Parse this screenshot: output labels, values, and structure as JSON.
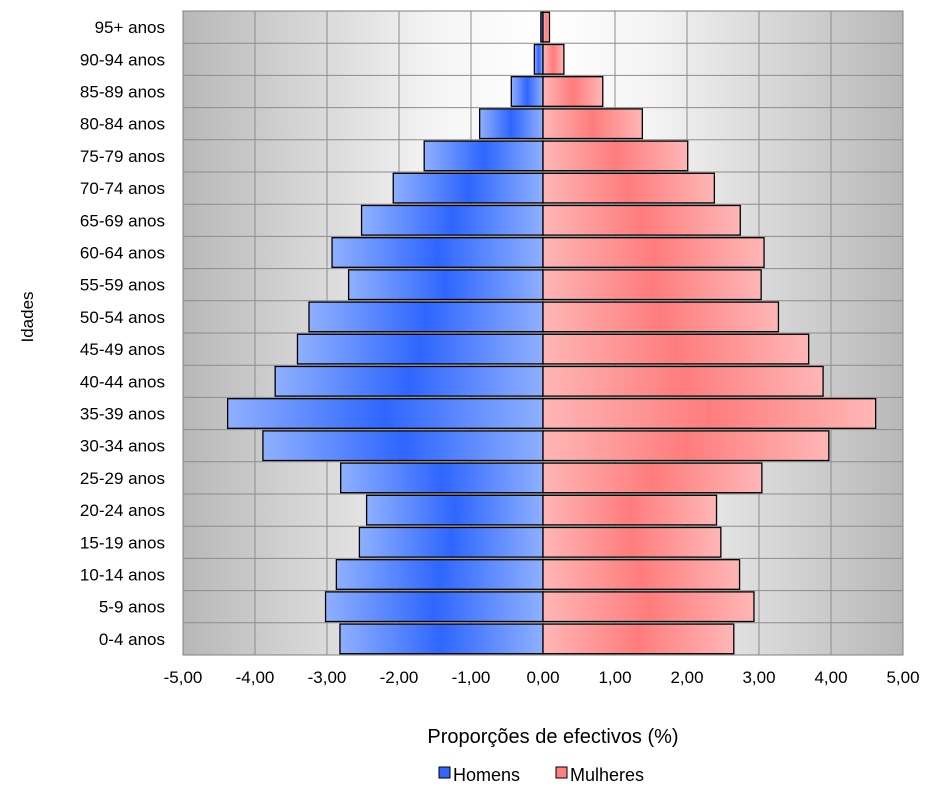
{
  "chart_data": {
    "type": "bar",
    "orientation": "horizontal",
    "subtype": "population-pyramid",
    "title": "",
    "xlabel": "Proporções de efectivos (%)",
    "ylabel": "Idades",
    "xlim": [
      -5,
      5
    ],
    "x_ticks": [
      "-5,00",
      "-4,00",
      "-3,00",
      "-2,00",
      "-1,00",
      "0,00",
      "1,00",
      "2,00",
      "3,00",
      "4,00",
      "5,00"
    ],
    "categories": [
      "0-4 anos",
      "5-9 anos",
      "10-14 anos",
      "15-19 anos",
      "20-24 anos",
      "25-29 anos",
      "30-34 anos",
      "35-39 anos",
      "40-44 anos",
      "45-49 anos",
      "50-54 anos",
      "55-59 anos",
      "60-64 anos",
      "65-69 anos",
      "70-74 anos",
      "75-79 anos",
      "80-84 anos",
      "85-89 anos",
      "90-94 anos",
      "95+ anos"
    ],
    "series": [
      {
        "name": "Homens",
        "color": "#3366ff",
        "values": [
          -2.82,
          -3.02,
          -2.87,
          -2.55,
          -2.45,
          -2.81,
          -3.89,
          -4.38,
          -3.72,
          -3.41,
          -3.25,
          -2.7,
          -2.93,
          -2.52,
          -2.08,
          -1.65,
          -0.88,
          -0.44,
          -0.12,
          -0.03
        ]
      },
      {
        "name": "Mulheres",
        "color": "#ff8080",
        "values": [
          2.65,
          2.93,
          2.73,
          2.47,
          2.41,
          3.04,
          3.97,
          4.62,
          3.89,
          3.69,
          3.27,
          3.03,
          3.07,
          2.74,
          2.38,
          2.01,
          1.38,
          0.83,
          0.29,
          0.09
        ]
      }
    ],
    "grid": true,
    "legend_position": "bottom"
  }
}
